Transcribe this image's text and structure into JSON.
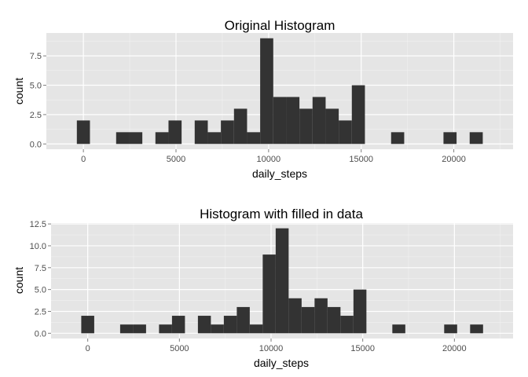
{
  "chart_data": [
    {
      "type": "bar",
      "title": "Original Histogram",
      "xlabel": "daily_steps",
      "ylabel": "count",
      "xlim": [
        -2000,
        23200
      ],
      "ylim": [
        -0.45,
        9.45
      ],
      "x_ticks": [
        0,
        5000,
        10000,
        15000,
        20000
      ],
      "x_tick_labels": [
        "0",
        "5000",
        "10000",
        "15000",
        "20000"
      ],
      "y_ticks": [
        0,
        2.5,
        5,
        7.5
      ],
      "y_tick_labels": [
        "0.0",
        "2.5",
        "5.0",
        "7.5"
      ],
      "bin_width": 707,
      "bin_centers": [
        0,
        707,
        1414,
        2121,
        2828,
        3535,
        4242,
        4949,
        5656,
        6363,
        7070,
        7777,
        8484,
        9191,
        9898,
        10605,
        11312,
        12019,
        12726,
        13433,
        14140,
        14847,
        15554,
        16261,
        16968,
        17675,
        18382,
        19089,
        19796,
        20503,
        21210,
        21917
      ],
      "values": [
        2,
        0,
        0,
        1,
        1,
        0,
        1,
        2,
        0,
        2,
        1,
        2,
        3,
        1,
        9,
        4,
        4,
        3,
        4,
        3,
        2,
        5,
        0,
        0,
        1,
        0,
        0,
        0,
        1,
        0,
        1,
        0
      ],
      "bar_color": "#333333",
      "grid": true
    },
    {
      "type": "bar",
      "title": "Histogram with filled in data",
      "xlabel": "daily_steps",
      "ylabel": "count",
      "xlim": [
        -2000,
        23200
      ],
      "ylim": [
        -0.6,
        12.6
      ],
      "x_ticks": [
        0,
        5000,
        10000,
        15000,
        20000
      ],
      "x_tick_labels": [
        "0",
        "5000",
        "10000",
        "15000",
        "20000"
      ],
      "y_ticks": [
        0,
        2.5,
        5,
        7.5,
        10,
        12.5
      ],
      "y_tick_labels": [
        "0.0",
        "2.5",
        "5.0",
        "7.5",
        "10.0",
        "12.5"
      ],
      "bin_width": 707,
      "bin_centers": [
        0,
        707,
        1414,
        2121,
        2828,
        3535,
        4242,
        4949,
        5656,
        6363,
        7070,
        7777,
        8484,
        9191,
        9898,
        10605,
        11312,
        12019,
        12726,
        13433,
        14140,
        14847,
        15554,
        16261,
        16968,
        17675,
        18382,
        19089,
        19796,
        20503,
        21210,
        21917
      ],
      "values": [
        2,
        0,
        0,
        1,
        1,
        0,
        1,
        2,
        0,
        2,
        1,
        2,
        3,
        1,
        9,
        12,
        4,
        3,
        4,
        3,
        2,
        5,
        0,
        0,
        1,
        0,
        0,
        0,
        1,
        0,
        1,
        0
      ],
      "bar_color": "#333333",
      "grid": true
    }
  ],
  "colors": {
    "panel_background": "#e5e5e5",
    "grid_major": "#ffffff",
    "grid_minor": "#f2f2f2",
    "tick_text": "#4d4d4d",
    "tick_mark": "#7f7f7f"
  }
}
